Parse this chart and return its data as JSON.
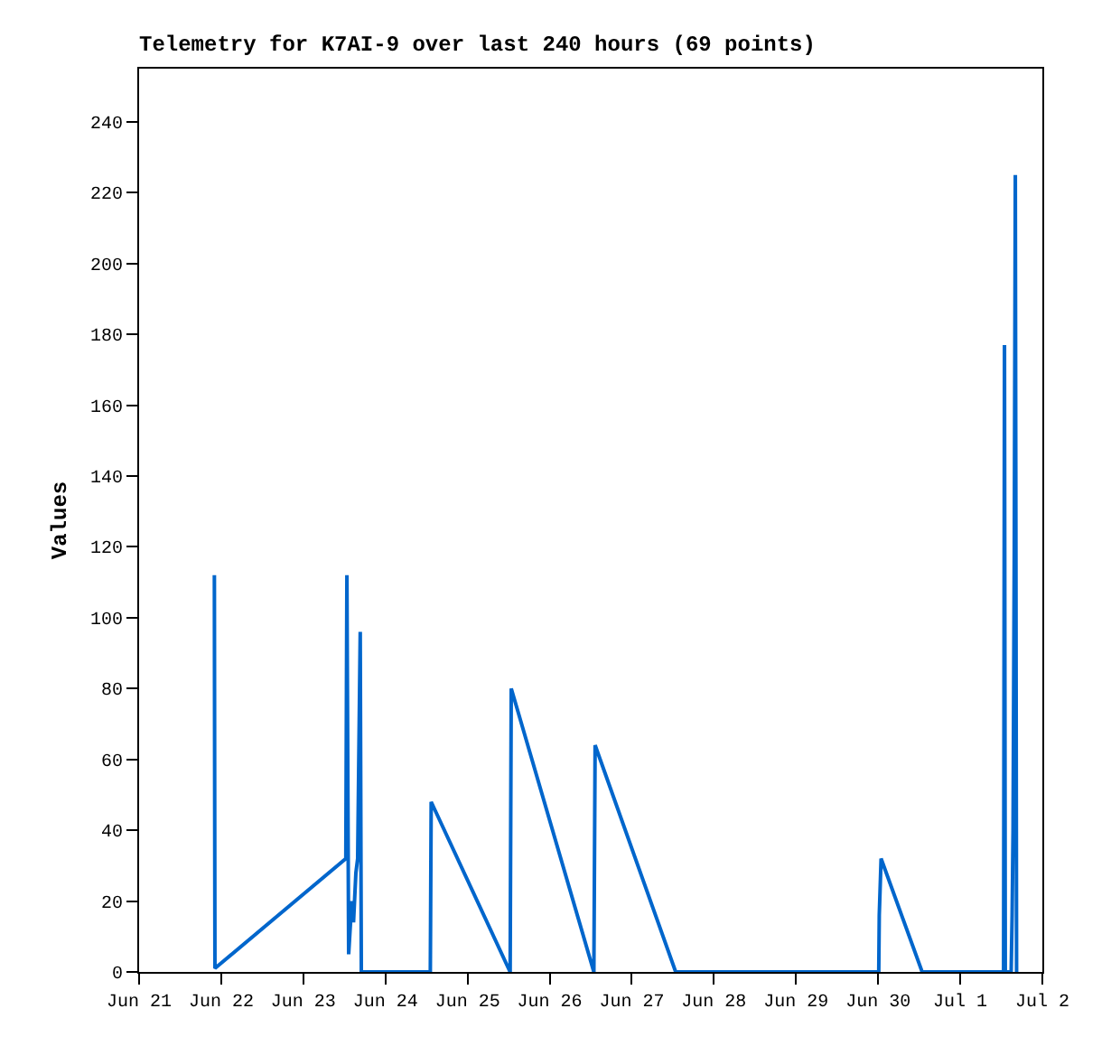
{
  "chart_data": {
    "type": "line",
    "title": "Telemetry for K7AI-9 over last 240 hours (69 points)",
    "ylabel": "Values",
    "x": [
      "--06-21T22:00",
      "--06-21T22:10",
      "--06-23T12:25",
      "--06-23T12:44",
      "--06-23T13:15",
      "--06-23T14:10",
      "--06-23T14:40",
      "--06-23T15:22",
      "--06-23T15:53",
      "--06-23T16:38",
      "--06-23T16:57",
      "--06-24T13:07",
      "--06-24T13:22",
      "--06-25T12:27",
      "--06-25T12:46",
      "--06-26T12:55",
      "--06-26T13:17",
      "--06-27T12:50",
      "--06-30T00:11",
      "--06-30T00:20",
      "--06-30T00:52",
      "--06-30T12:52",
      "--07-01T12:40",
      "--07-01T12:56",
      "--07-01T13:10",
      "--07-01T14:53",
      "--07-01T15:10",
      "--07-01T15:26",
      "--07-01T15:48",
      "--07-01T16:06",
      "--07-01T16:28"
    ],
    "series": [
      {
        "color": "#0066cc",
        "values": [
          112,
          1,
          32,
          112,
          5,
          20,
          14,
          28,
          32,
          96,
          0,
          0,
          48,
          0,
          80,
          0,
          64,
          0,
          0,
          16,
          32,
          0,
          0,
          177,
          0,
          0,
          16,
          40,
          120,
          225,
          0
        ]
      }
    ],
    "xlim": [
      "--06-21",
      "--07-02"
    ],
    "xticks": [
      {
        "value": "--06-21",
        "label": "Jun 21"
      },
      {
        "value": "--06-22",
        "label": "Jun 22"
      },
      {
        "value": "--06-23",
        "label": "Jun 23"
      },
      {
        "value": "--06-24",
        "label": "Jun 24"
      },
      {
        "value": "--06-25",
        "label": "Jun 25"
      },
      {
        "value": "--06-26",
        "label": "Jun 26"
      },
      {
        "value": "--06-27",
        "label": "Jun 27"
      },
      {
        "value": "--06-28",
        "label": "Jun 28"
      },
      {
        "value": "--06-29",
        "label": "Jun 29"
      },
      {
        "value": "--06-30",
        "label": "Jun 30"
      },
      {
        "value": "--07-01",
        "label": "Jul 1"
      },
      {
        "value": "--07-02",
        "label": "Jul 2"
      }
    ],
    "ylim": [
      0,
      255
    ],
    "yticks": [
      0,
      20,
      40,
      60,
      80,
      100,
      120,
      140,
      160,
      180,
      200,
      220,
      240
    ],
    "legend": false,
    "marker": "none",
    "line_style": "solid"
  }
}
